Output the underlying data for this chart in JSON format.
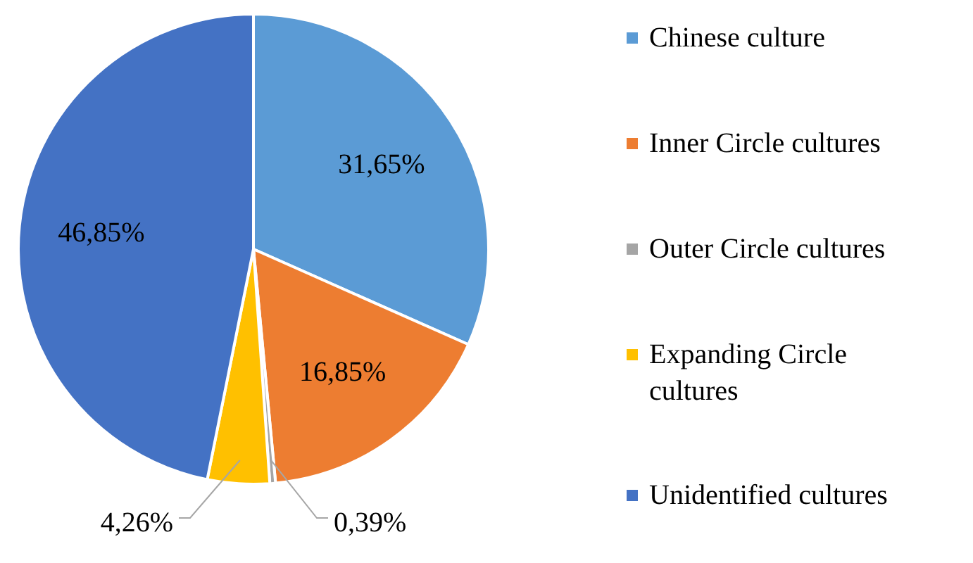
{
  "chart_data": {
    "type": "pie",
    "categories": [
      "Chinese culture",
      "Inner Circle cultures",
      "Outer Circle cultures",
      "Expanding Circle cultures",
      "Unidentified cultures"
    ],
    "values": [
      31.65,
      16.85,
      0.39,
      4.26,
      46.85
    ],
    "colors": [
      "#5b9bd5",
      "#ed7d31",
      "#a5a5a5",
      "#ffc000",
      "#4472c4"
    ],
    "value_labels": [
      "31,65%",
      "16,85%",
      "0,39%",
      "4,26%",
      "46,85%"
    ],
    "legend": "right"
  }
}
